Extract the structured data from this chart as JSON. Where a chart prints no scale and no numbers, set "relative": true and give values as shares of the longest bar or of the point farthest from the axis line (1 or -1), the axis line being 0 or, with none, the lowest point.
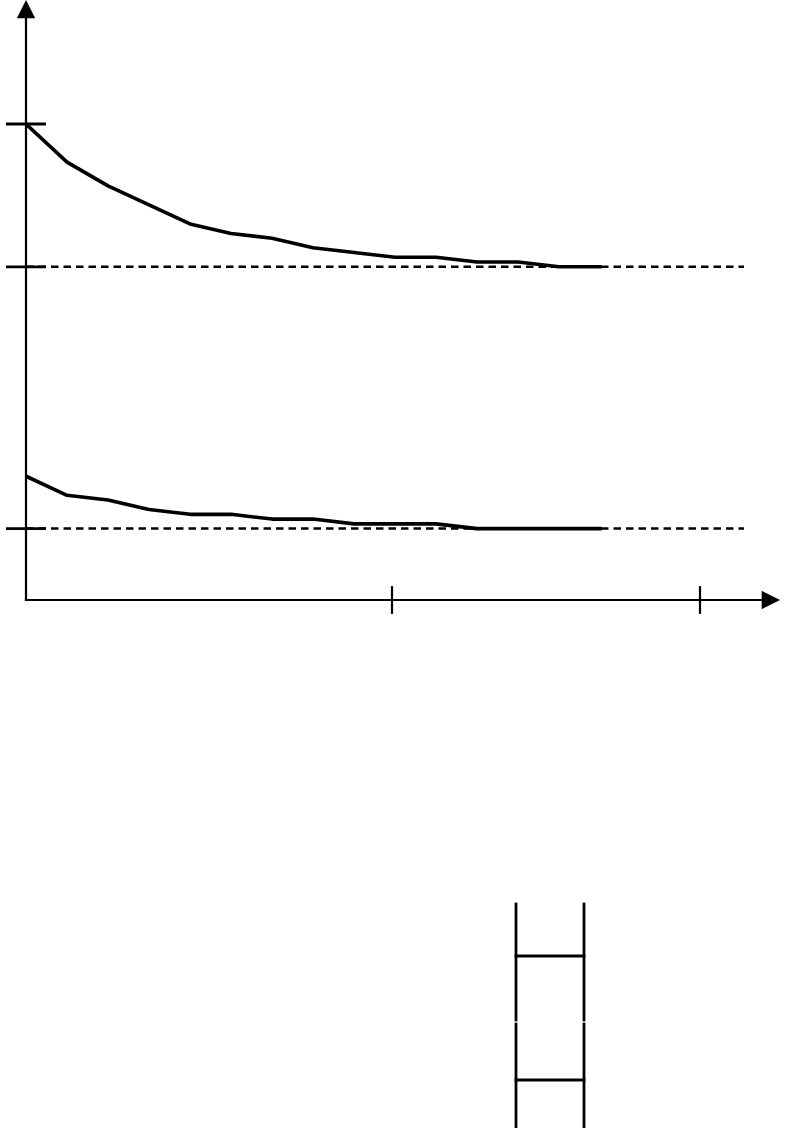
{
  "chart_data": {
    "type": "line",
    "relative": true,
    "categories": [
      null,
      null,
      null,
      null,
      null,
      null,
      null,
      null,
      null,
      null,
      null,
      null,
      null,
      null,
      null
    ],
    "series": [
      {
        "color": "#000000",
        "values": [
          1.0,
          0.92,
          0.87,
          0.83,
          0.79,
          0.77,
          0.76,
          0.74,
          0.73,
          0.72,
          0.72,
          0.71,
          0.71,
          0.7,
          0.7
        ]
      },
      {
        "color": "#000000",
        "values": [
          0.26,
          0.22,
          0.21,
          0.19,
          0.18,
          0.18,
          0.17,
          0.17,
          0.16,
          0.16,
          0.16,
          0.15,
          0.15,
          0.15,
          0.15
        ]
      }
    ],
    "ref_lines": [
      {
        "axis": "y",
        "value": 0.7,
        "color": "#000000",
        "line_style": "dashed"
      },
      {
        "axis": "y",
        "value": 0.15,
        "color": "#000000",
        "line_style": "dashed"
      }
    ]
  }
}
